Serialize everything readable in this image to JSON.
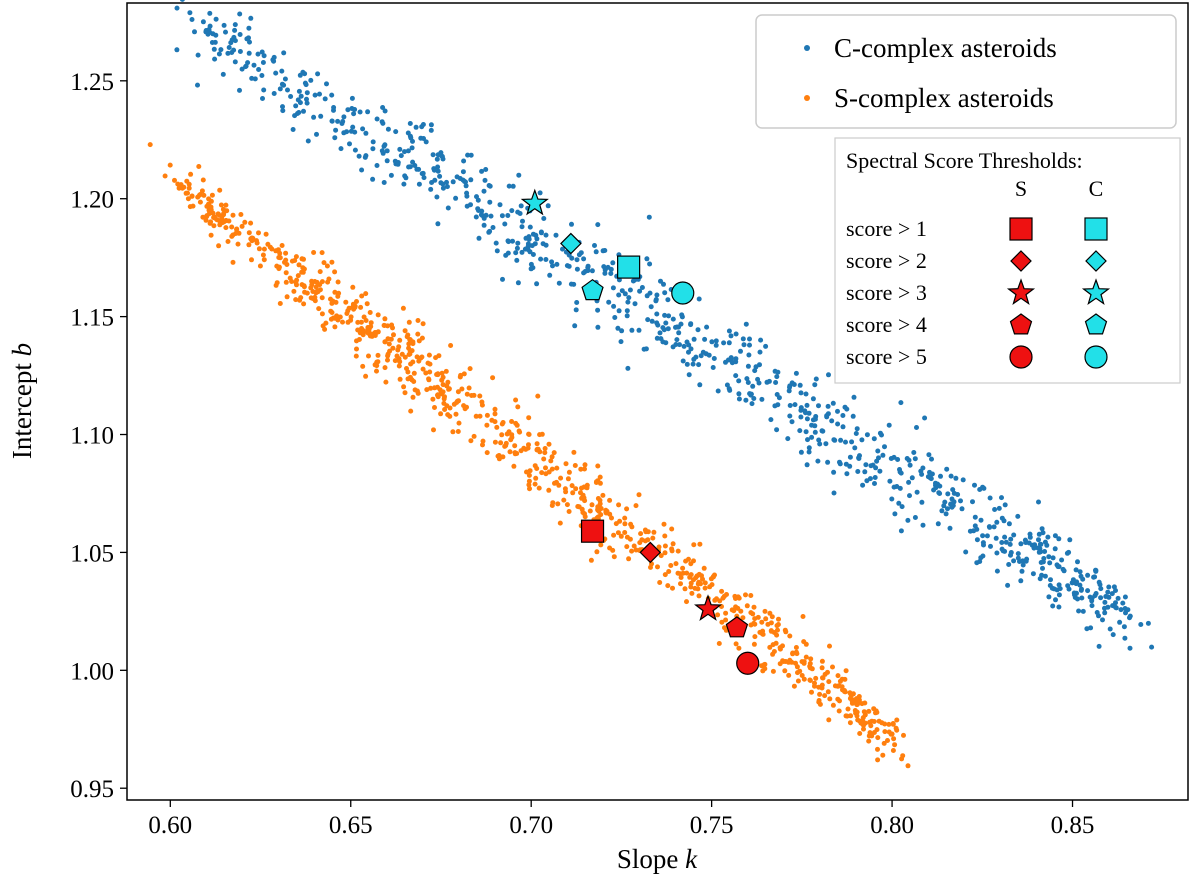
{
  "chart_data": {
    "type": "scatter",
    "xlabel": "Slope",
    "xlabel_var": "k",
    "ylabel": "Intercept",
    "ylabel_var": "b",
    "xlim": [
      0.588,
      0.882
    ],
    "ylim": [
      0.945,
      1.283
    ],
    "xticks": [
      0.6,
      0.65,
      0.7,
      0.75,
      0.8,
      0.85
    ],
    "xtick_labels": [
      "0.60",
      "0.65",
      "0.70",
      "0.75",
      "0.80",
      "0.85"
    ],
    "yticks": [
      0.95,
      1.0,
      1.05,
      1.1,
      1.15,
      1.2,
      1.25
    ],
    "ytick_labels": [
      "0.95",
      "1.00",
      "1.05",
      "1.10",
      "1.15",
      "1.20",
      "1.25"
    ],
    "grid": false,
    "legend": {
      "location": "top-right",
      "entries": [
        {
          "label": "C-complex asteroids",
          "color": "#1f77b4"
        },
        {
          "label": "S-complex asteroids",
          "color": "#ff7f0e"
        }
      ]
    },
    "series": [
      {
        "name": "C-complex asteroids",
        "color": "#1f77b4",
        "marker": "dot",
        "trend": {
          "x_start": 0.606,
          "y_start": 1.275,
          "x_end": 0.866,
          "y_end": 1.023
        },
        "sample_count": 900,
        "outliers": [
          [
            0.606,
            1.276
          ],
          [
            0.617,
            1.262
          ],
          [
            0.618,
            1.258
          ],
          [
            0.866,
            1.023
          ],
          [
            0.855,
            1.018
          ],
          [
            0.853,
            1.025
          ],
          [
            0.846,
            1.044
          ],
          [
            0.838,
            1.054
          ],
          [
            0.836,
            1.042
          ],
          [
            0.832,
            1.036
          ],
          [
            0.809,
            1.107
          ],
          [
            0.805,
            1.087
          ]
        ]
      },
      {
        "name": "S-complex asteroids",
        "color": "#ff7f0e",
        "marker": "dot",
        "trend": {
          "x_start": 0.603,
          "y_start": 1.205,
          "x_end": 0.8,
          "y_end": 0.973
        },
        "sample_count": 900,
        "outliers": [
          [
            0.603,
            1.206
          ],
          [
            0.605,
            1.2
          ],
          [
            0.606,
            1.201
          ],
          [
            0.617,
            1.188
          ],
          [
            0.796,
            0.962
          ],
          [
            0.8,
            0.973
          ],
          [
            0.798,
            0.974
          ]
        ]
      }
    ],
    "thresholds": {
      "title": "Spectral Score Thresholds:",
      "col_S": "S",
      "col_C": "C",
      "rows": [
        {
          "label": "score > 1",
          "marker": "square"
        },
        {
          "label": "score > 2",
          "marker": "diamond"
        },
        {
          "label": "score > 3",
          "marker": "star"
        },
        {
          "label": "score > 4",
          "marker": "pentagon"
        },
        {
          "label": "score > 5",
          "marker": "circle"
        }
      ],
      "colors": {
        "S": "#ee1111",
        "C": "#22e0e8"
      },
      "points": {
        "S": [
          {
            "marker": "square",
            "x": 0.717,
            "y": 1.059
          },
          {
            "marker": "diamond",
            "x": 0.733,
            "y": 1.05
          },
          {
            "marker": "star",
            "x": 0.749,
            "y": 1.026
          },
          {
            "marker": "pentagon",
            "x": 0.757,
            "y": 1.018
          },
          {
            "marker": "circle",
            "x": 0.76,
            "y": 1.003
          }
        ],
        "C": [
          {
            "marker": "square",
            "x": 0.727,
            "y": 1.171
          },
          {
            "marker": "diamond",
            "x": 0.711,
            "y": 1.181
          },
          {
            "marker": "star",
            "x": 0.701,
            "y": 1.198
          },
          {
            "marker": "pentagon",
            "x": 0.717,
            "y": 1.161
          },
          {
            "marker": "circle",
            "x": 0.742,
            "y": 1.16
          }
        ]
      }
    }
  }
}
